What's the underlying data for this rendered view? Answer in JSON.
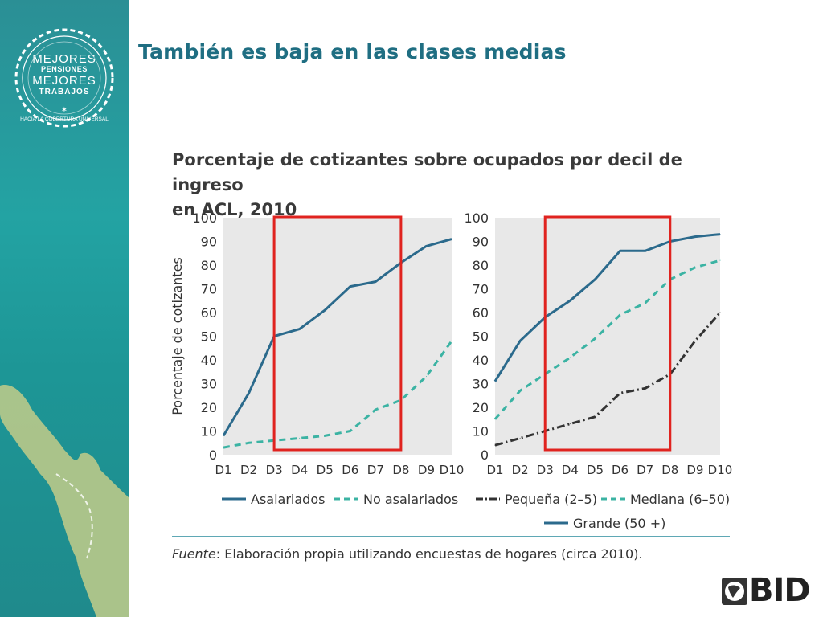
{
  "slide": {
    "title": "También es baja en las clases medias"
  },
  "logo": {
    "line1": "MEJORES",
    "line2": "PENSIONES",
    "line3": "MEJORES",
    "line4": "TRABAJOS",
    "ring_text": "HACIA LA COBERTURA UNIVERSAL"
  },
  "figure": {
    "title_line1": "Porcentaje de cotizantes sobre ocupados por decil de ingreso",
    "title_line2": "en ACL, 2010",
    "source_label": "Fuente",
    "source_text": ": Elaboración propia utilizando encuestas de hogares (circa 2010)."
  },
  "brand": {
    "bid": "BID"
  },
  "colors": {
    "title": "#1f6e82",
    "series_blue": "#2b6a8c",
    "series_teal": "#3bb3a3",
    "series_dark": "#333333",
    "highlight": "#e0231f",
    "plot_bg": "#e8e8e8"
  },
  "chart_data": [
    {
      "type": "line",
      "title": "",
      "ylabel": "Porcentaje de cotizantes",
      "xlabel": "",
      "categories": [
        "D1",
        "D2",
        "D3",
        "D4",
        "D5",
        "D6",
        "D7",
        "D8",
        "D9",
        "D10"
      ],
      "ylim": [
        0,
        100
      ],
      "yticks": [
        "0",
        "10",
        "20",
        "30",
        "40",
        "50",
        "60",
        "70",
        "80",
        "90",
        "100"
      ],
      "grid": false,
      "legend_position": "bottom",
      "highlight_range": [
        "D3",
        "D8"
      ],
      "series": [
        {
          "name": "Asalariados",
          "style": "solid",
          "color": "#2b6a8c",
          "values": [
            8,
            26,
            50,
            53,
            61,
            71,
            73,
            81,
            88,
            91
          ]
        },
        {
          "name": "No asalariados",
          "style": "dashed",
          "color": "#3bb3a3",
          "values": [
            3,
            5,
            6,
            7,
            8,
            10,
            19,
            23,
            33,
            48
          ]
        }
      ]
    },
    {
      "type": "line",
      "title": "",
      "ylabel": "",
      "xlabel": "",
      "categories": [
        "D1",
        "D2",
        "D3",
        "D4",
        "D5",
        "D6",
        "D7",
        "D8",
        "D9",
        "D10"
      ],
      "ylim": [
        0,
        100
      ],
      "yticks": [
        "0",
        "10",
        "20",
        "30",
        "40",
        "50",
        "60",
        "70",
        "80",
        "90",
        "100"
      ],
      "grid": false,
      "legend_position": "bottom",
      "highlight_range": [
        "D3",
        "D8"
      ],
      "series": [
        {
          "name": "Pequeña (2–5)",
          "style": "dashdot",
          "color": "#333333",
          "values": [
            4,
            7,
            10,
            13,
            16,
            26,
            28,
            34,
            48,
            60
          ]
        },
        {
          "name": "Mediana (6–50)",
          "style": "dashed",
          "color": "#3bb3a3",
          "values": [
            15,
            27,
            34,
            41,
            49,
            59,
            64,
            74,
            79,
            82
          ]
        },
        {
          "name": "Grande (50 +)",
          "style": "solid",
          "color": "#2b6a8c",
          "values": [
            31,
            48,
            58,
            65,
            74,
            86,
            86,
            90,
            92,
            93
          ]
        }
      ]
    }
  ]
}
